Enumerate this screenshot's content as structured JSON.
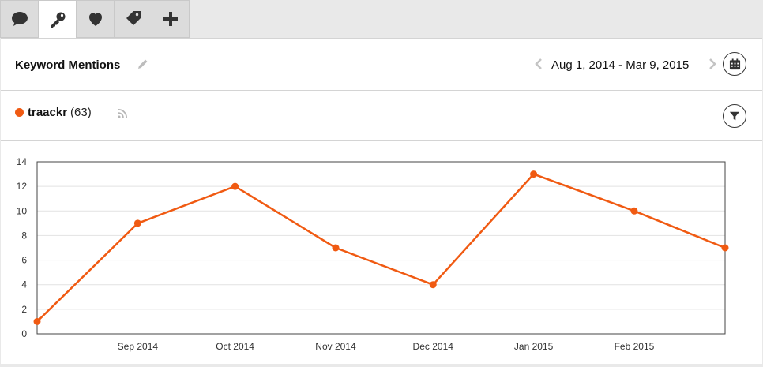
{
  "tabs": [
    {
      "name": "comment-icon",
      "active": false
    },
    {
      "name": "key-icon",
      "active": true
    },
    {
      "name": "heart-icon",
      "active": false
    },
    {
      "name": "tag-icon",
      "active": false
    },
    {
      "name": "plus-icon",
      "active": false
    }
  ],
  "header": {
    "title": "Keyword Mentions",
    "date_range": "Aug 1, 2014 - Mar 9, 2015"
  },
  "legend": {
    "name": "traackr",
    "count": "(63)",
    "color": "#f05a12"
  },
  "chart_data": {
    "type": "line",
    "x_tick_labels": [
      "Sep 2014",
      "Oct 2014",
      "Nov 2014",
      "Dec 2014",
      "Jan 2015",
      "Feb 2015"
    ],
    "series": [
      {
        "name": "traackr",
        "color": "#f05a12",
        "points": [
          {
            "x": "2014-08-01",
            "y": 1
          },
          {
            "x": "2014-09-01",
            "y": 9
          },
          {
            "x": "2014-10-01",
            "y": 12
          },
          {
            "x": "2014-11-01",
            "y": 7
          },
          {
            "x": "2014-12-01",
            "y": 4
          },
          {
            "x": "2015-01-01",
            "y": 13
          },
          {
            "x": "2015-02-01",
            "y": 10
          },
          {
            "x": "2015-03-01",
            "y": 7
          }
        ]
      }
    ],
    "ylim": [
      0,
      14
    ],
    "yticks": [
      0,
      2,
      4,
      6,
      8,
      10,
      12,
      14
    ],
    "grid": true,
    "legend": "top-left"
  }
}
